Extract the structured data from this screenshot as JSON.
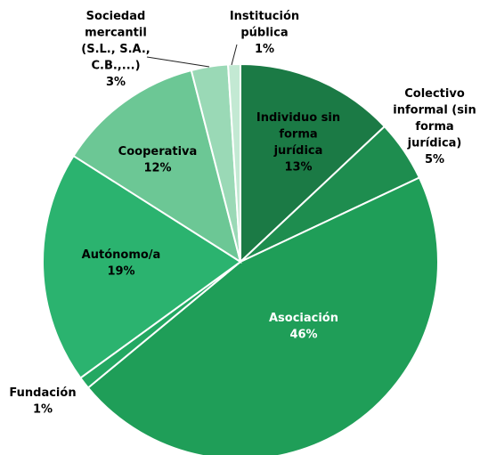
{
  "chart_data": {
    "type": "pie",
    "title": "",
    "slices": [
      {
        "label": "Individuo sin forma jurídica",
        "value": 13,
        "value_label": "13%",
        "color": "#1b7a45",
        "text_color": "#000000"
      },
      {
        "label": "Colectivo informal (sin forma jurídica)",
        "value": 5,
        "value_label": "5%",
        "color": "#1e8d4f",
        "text_color": "#000000"
      },
      {
        "label": "Asociación",
        "value": 46,
        "value_label": "46%",
        "color": "#1f9e58",
        "text_color": "#ffffff"
      },
      {
        "label": "Fundación",
        "value": 1,
        "value_label": "1%",
        "color": "#23a862",
        "text_color": "#000000"
      },
      {
        "label": "Autónomo/a",
        "value": 19,
        "value_label": "19%",
        "color": "#2bb36f",
        "text_color": "#000000"
      },
      {
        "label": "Cooperativa",
        "value": 12,
        "value_label": "12%",
        "color": "#6cc795",
        "text_color": "#000000"
      },
      {
        "label": "Sociedad mercantil (S.L., S.A., C.B.,...)",
        "value": 3,
        "value_label": "3%",
        "color": "#9ad9b6",
        "text_color": "#000000"
      },
      {
        "label": "Institución pública",
        "value": 1,
        "value_label": "1%",
        "color": "#c3e9d3",
        "text_color": "#000000"
      }
    ]
  }
}
